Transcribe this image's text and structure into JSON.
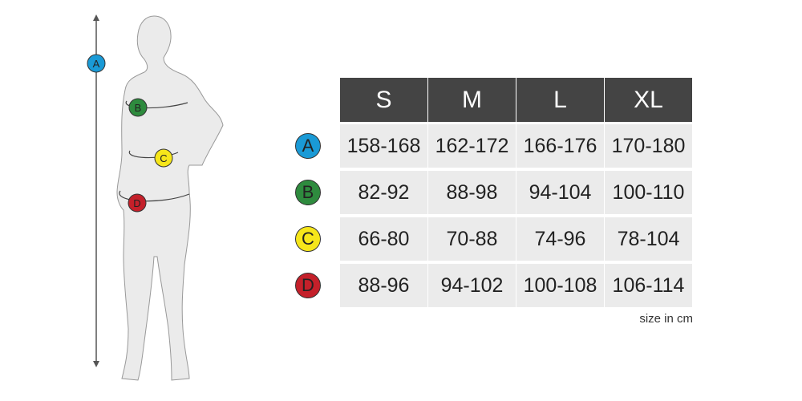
{
  "sizes": [
    "S",
    "M",
    "L",
    "XL"
  ],
  "rows": [
    {
      "label": "A",
      "color": "#1a9ad6",
      "values": [
        "158-168",
        "162-172",
        "166-176",
        "170-180"
      ]
    },
    {
      "label": "B",
      "color": "#2e8b3e",
      "values": [
        "82-92",
        "88-98",
        "94-104",
        "100-110"
      ]
    },
    {
      "label": "C",
      "color": "#f6e61a",
      "values": [
        "66-80",
        "70-88",
        "74-96",
        "78-104"
      ]
    },
    {
      "label": "D",
      "color": "#c4202a",
      "values": [
        "88-96",
        "94-102",
        "100-108",
        "106-114"
      ]
    }
  ],
  "note": "size in cm"
}
